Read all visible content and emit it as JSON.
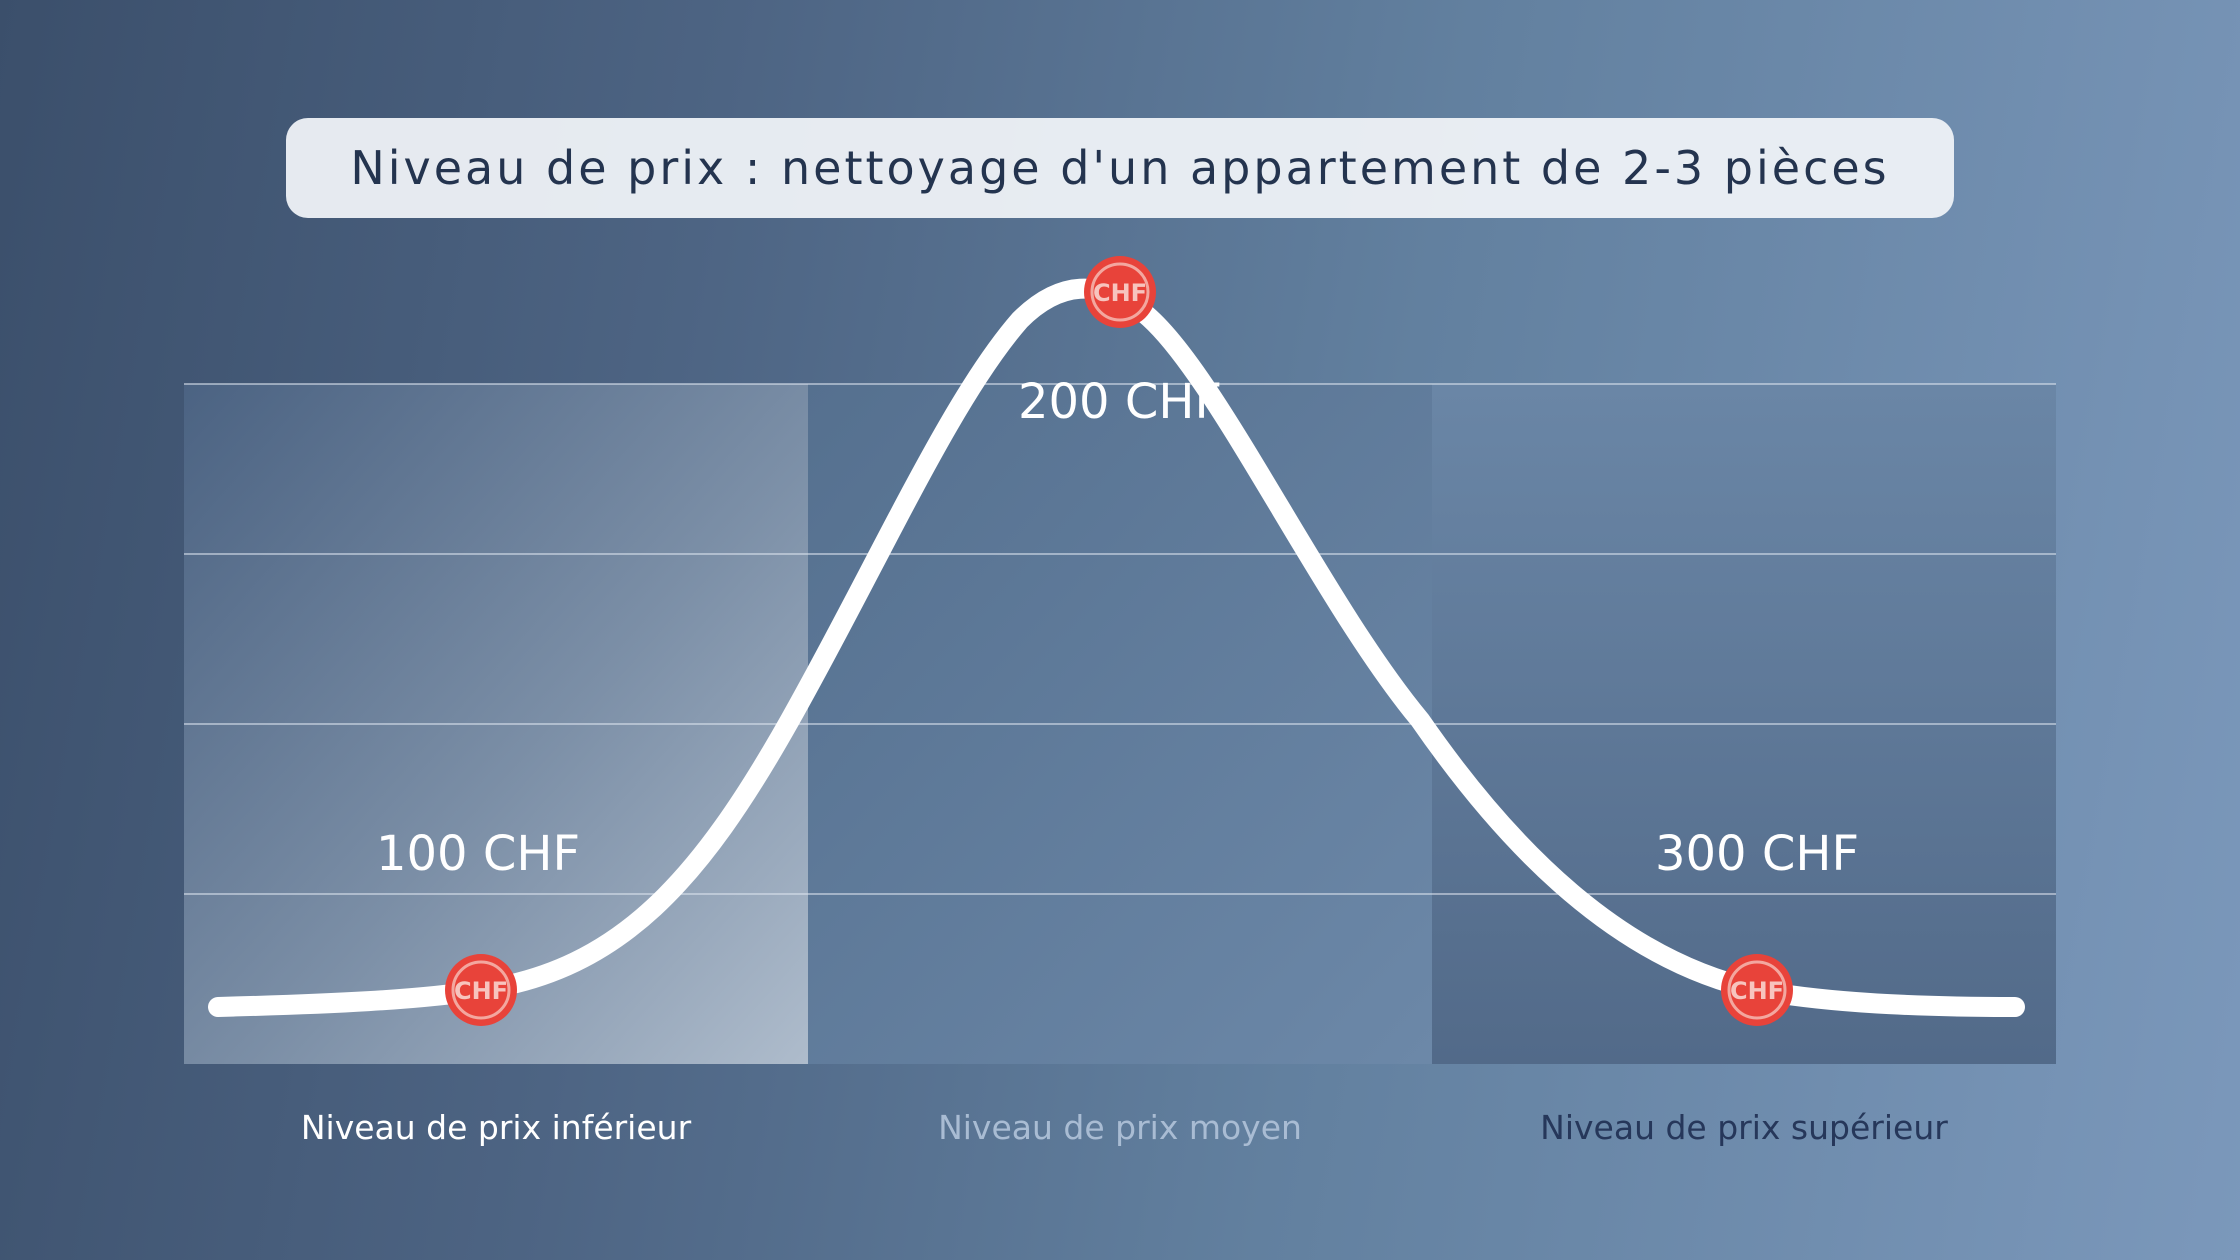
{
  "chart_data": {
    "type": "area",
    "title": "Niveau de prix : nettoyage d'un appartement de 2-3 pièces",
    "categories": [
      "Niveau de prix inférieur",
      "Niveau de prix moyen",
      "Niveau de prix supérieur"
    ],
    "markers": [
      {
        "label": "100 CHF",
        "value": 100,
        "badge": "CHF"
      },
      {
        "label": "200 CHF",
        "value": 200,
        "badge": "CHF"
      },
      {
        "label": "300 CHF",
        "value": 300,
        "badge": "CHF"
      }
    ],
    "grid": true,
    "legend": "none"
  },
  "colors": {
    "curve": "#ffffff",
    "marker": "#e8433a",
    "label_low": "#ffffff",
    "label_mid": "#a9bcd3",
    "label_high": "#26375a",
    "title_text": "#24344f"
  }
}
